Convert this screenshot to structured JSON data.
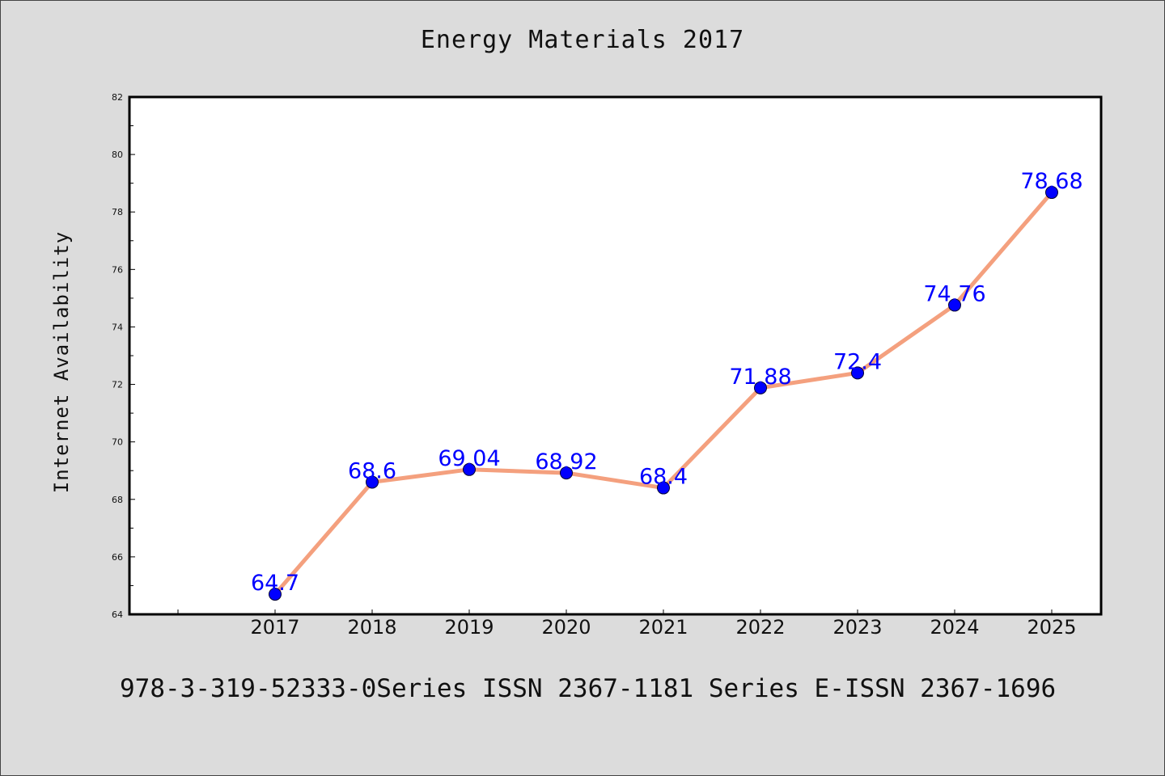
{
  "header": {
    "title": "Energy Materials 2017"
  },
  "footer": {
    "text": "978-3-319-52333-0Series ISSN 2367-1181 Series E-ISSN 2367-1696"
  },
  "colors": {
    "line": "#f4a07e",
    "marker": "#0000ff",
    "label": "#0000ff",
    "background": "#dcdcdc",
    "plot_background": "#ffffff"
  },
  "chart_data": {
    "type": "line",
    "title": "Energy Materials 2017",
    "xlabel": "",
    "ylabel": "Internet Availability",
    "categories": [
      "2017",
      "2018",
      "2019",
      "2020",
      "2021",
      "2022",
      "2023",
      "2024",
      "2025"
    ],
    "series": [
      {
        "values": [
          64.7,
          68.6,
          69.04,
          68.92,
          68.4,
          71.88,
          72.4,
          74.76,
          78.68
        ]
      }
    ],
    "data_labels": [
      "64.7",
      "68.6",
      "69.04",
      "68.92",
      "68.4",
      "71.88",
      "72.4",
      "74.76",
      "78.68"
    ],
    "ylim": [
      64,
      82
    ],
    "yticks": [
      "64",
      "66",
      "68",
      "70",
      "72",
      "74",
      "76",
      "78",
      "80",
      "82"
    ],
    "grid": false,
    "legend": false
  }
}
